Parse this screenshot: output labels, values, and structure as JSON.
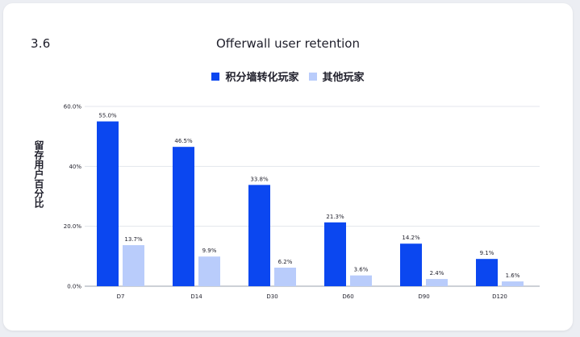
{
  "figure_number": "3.6",
  "chart_data": {
    "type": "bar",
    "title": "Offerwall user retention",
    "xlabel": "",
    "ylabel": "留存用户百分比",
    "categories": [
      "D7",
      "D14",
      "D30",
      "D60",
      "D90",
      "D120"
    ],
    "series": [
      {
        "name": "积分墙转化玩家",
        "color": "#0b47f0",
        "values": [
          55.0,
          46.5,
          33.8,
          21.3,
          14.2,
          9.1
        ],
        "labels": [
          "55.0%",
          "46.5%",
          "33.8%",
          "21.3%",
          "14.2%",
          "9.1%"
        ]
      },
      {
        "name": "其他玩家",
        "color": "#b9ccfb",
        "values": [
          13.7,
          9.9,
          6.2,
          3.6,
          2.4,
          1.6
        ],
        "labels": [
          "13.7%",
          "9.9%",
          "6.2%",
          "3.6%",
          "2.4%",
          "1.6%"
        ]
      }
    ],
    "ylim": [
      0,
      60
    ],
    "yticks": [
      {
        "value": 0,
        "label": "0.0%"
      },
      {
        "value": 20,
        "label": "20.0%"
      },
      {
        "value": 40,
        "label": "40%"
      },
      {
        "value": 60,
        "label": "60.0%"
      }
    ],
    "grid": true,
    "legend_position": "top-center"
  }
}
